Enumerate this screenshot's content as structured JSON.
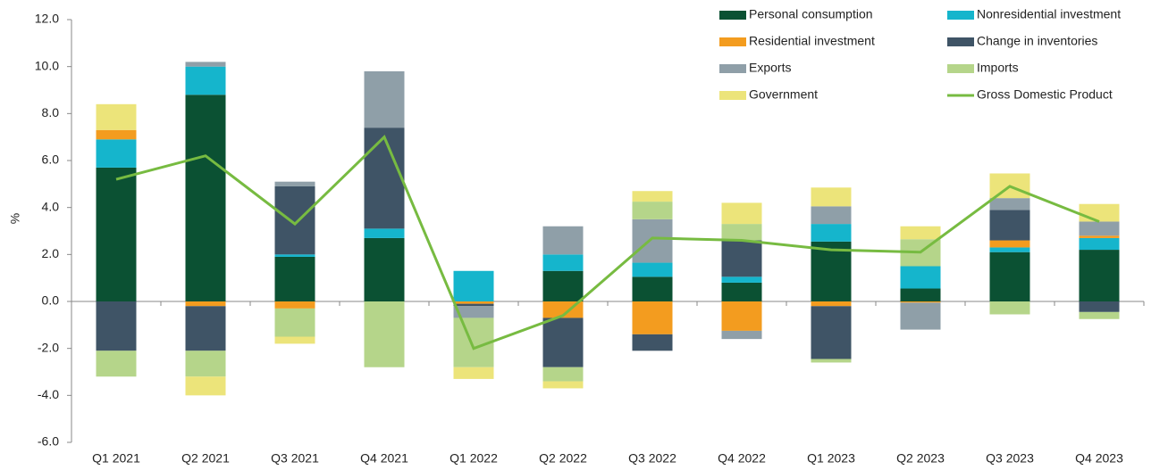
{
  "chart_data": {
    "type": "bar",
    "stacked": true,
    "ylabel": "%",
    "categories": [
      "Q1 2021",
      "Q2 2021",
      "Q3 2021",
      "Q4 2021",
      "Q1 2022",
      "Q2 2022",
      "Q3 2022",
      "Q4 2022",
      "Q1 2023",
      "Q2 2023",
      "Q3 2023",
      "Q4 2023"
    ],
    "series": [
      {
        "name": "Personal consumption",
        "color": "#0b5133",
        "values": [
          5.7,
          8.8,
          1.9,
          2.7,
          0,
          1.3,
          1.05,
          0.8,
          2.55,
          0.55,
          2.1,
          2.2
        ]
      },
      {
        "name": "Nonresidential investment",
        "color": "#15b5cc",
        "values": [
          1.2,
          1.2,
          0.1,
          0.4,
          1.3,
          0.7,
          0.6,
          0.25,
          0.75,
          0.95,
          0.2,
          0.5
        ]
      },
      {
        "name": "Residential investment",
        "color": "#f39c1f",
        "values": [
          0.4,
          -0.2,
          -0.3,
          0,
          -0.1,
          -0.7,
          -1.4,
          -1.25,
          -0.2,
          -0.05,
          0.3,
          0.1
        ]
      },
      {
        "name": "Change in inventories",
        "color": "#3f5466",
        "values": [
          -2.1,
          -1.9,
          2.9,
          4.3,
          -0.1,
          -2.1,
          -0.7,
          1.55,
          -2.25,
          0,
          1.3,
          -0.45
        ]
      },
      {
        "name": "Exports",
        "color": "#8f9fa8",
        "values": [
          0,
          0.2,
          0.2,
          2.4,
          -0.5,
          1.2,
          1.85,
          -0.35,
          0.75,
          -1.15,
          0.5,
          0.6
        ]
      },
      {
        "name": "Imports",
        "color": "#b5d58a",
        "values": [
          -1.1,
          -1.1,
          -1.2,
          -2.8,
          -2.1,
          -0.6,
          0.75,
          0.7,
          -0.15,
          1.15,
          -0.55,
          -0.3
        ]
      },
      {
        "name": "Government",
        "color": "#ece47a",
        "values": [
          1.1,
          -0.8,
          -0.3,
          0,
          -0.5,
          -0.3,
          0.45,
          0.9,
          0.8,
          0.55,
          1.05,
          0.75
        ]
      },
      {
        "name": "Gross Domestic Product",
        "color": "#77bb41",
        "type": "line",
        "values": [
          5.2,
          6.2,
          3.3,
          7.0,
          -2.0,
          -0.6,
          2.7,
          2.6,
          2.2,
          2.1,
          4.9,
          3.4
        ]
      }
    ],
    "ylim": [
      -6,
      12
    ],
    "yticks": [
      {
        "value": -6,
        "label": "-6.0"
      },
      {
        "value": -4,
        "label": "-4.0"
      },
      {
        "value": -2,
        "label": "-2.0"
      },
      {
        "value": 0,
        "label": "0.0"
      },
      {
        "value": 2,
        "label": "2.0"
      },
      {
        "value": 4,
        "label": "4.0"
      },
      {
        "value": 6,
        "label": "6.0"
      },
      {
        "value": 8,
        "label": "8.0"
      },
      {
        "value": 10,
        "label": "10.0"
      },
      {
        "value": 12,
        "label": "12.0"
      }
    ],
    "grid": false,
    "legend": "top-right"
  }
}
